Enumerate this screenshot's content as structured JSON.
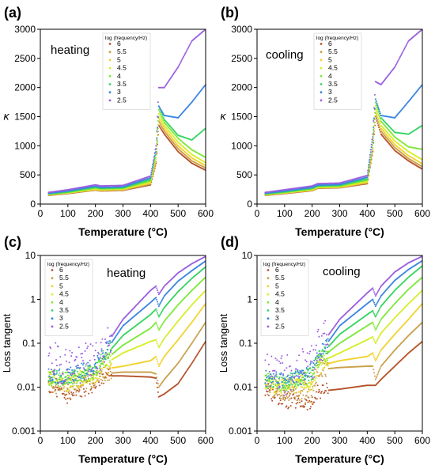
{
  "legend_title": "log (frequency/Hz)",
  "series_colors": [
    "#b5532a",
    "#c9a04a",
    "#f2d22e",
    "#d6ee2a",
    "#7fe83a",
    "#37d462",
    "#3b86e0",
    "#9b5fe0"
  ],
  "chart_data": [
    {
      "type": "scatter",
      "panel_label": "(a)",
      "annotation": "heating",
      "xlabel": "Temperature (°C)",
      "ylabel": "κ",
      "xlim": [
        0,
        600
      ],
      "ylim": [
        0,
        3000
      ],
      "yscale": "linear",
      "xticks": [
        0,
        100,
        200,
        300,
        400,
        500,
        600
      ],
      "yticks": [
        0,
        500,
        1000,
        1500,
        2000,
        2500,
        3000
      ],
      "ytick_labels": [
        "0",
        "500",
        "1000",
        "1500",
        "2000",
        "2500",
        "3000"
      ],
      "legend_position": "top-center",
      "x": [
        30,
        100,
        200,
        220,
        300,
        400,
        420,
        430,
        450,
        500,
        550,
        600
      ],
      "series": [
        {
          "name": "6",
          "values": [
            150,
            180,
            240,
            225,
            235,
            330,
            700,
            1350,
            1200,
            900,
            700,
            580
          ]
        },
        {
          "name": "5.5",
          "values": [
            155,
            185,
            245,
            230,
            240,
            345,
            720,
            1420,
            1250,
            950,
            740,
            620
          ]
        },
        {
          "name": "5",
          "values": [
            160,
            190,
            250,
            240,
            250,
            360,
            760,
            1480,
            1300,
            1000,
            790,
            660
          ]
        },
        {
          "name": "4.5",
          "values": [
            165,
            195,
            260,
            250,
            260,
            380,
            800,
            1550,
            1350,
            1060,
            850,
            710
          ]
        },
        {
          "name": "4",
          "values": [
            170,
            200,
            275,
            260,
            270,
            400,
            850,
            1620,
            1400,
            1130,
            930,
            800
          ]
        },
        {
          "name": "3.5",
          "values": [
            175,
            210,
            290,
            270,
            280,
            420,
            900,
            1680,
            1450,
            1180,
            1100,
            1300
          ]
        },
        {
          "name": "3",
          "values": [
            185,
            225,
            305,
            285,
            295,
            450,
            950,
            1680,
            1520,
            1480,
            1750,
            2050
          ]
        },
        {
          "name": "2.5",
          "values": [
            200,
            245,
            330,
            310,
            320,
            480,
            1000,
            2000,
            2000,
            2350,
            2800,
            3000
          ]
        }
      ]
    },
    {
      "type": "scatter",
      "panel_label": "(b)",
      "annotation": "cooling",
      "xlabel": "Temperature (°C)",
      "ylabel": "κ",
      "xlim": [
        0,
        600
      ],
      "ylim": [
        0,
        3000
      ],
      "yscale": "linear",
      "xticks": [
        0,
        100,
        200,
        300,
        400,
        500,
        600
      ],
      "yticks": [
        0,
        500,
        1000,
        1500,
        2000,
        2500,
        3000
      ],
      "ytick_labels": [
        "0",
        "500",
        "1000",
        "1500",
        "2000",
        "2500",
        "3000"
      ],
      "legend_position": "top-center",
      "x": [
        30,
        100,
        200,
        220,
        300,
        400,
        420,
        430,
        450,
        500,
        550,
        600
      ],
      "series": [
        {
          "name": "6",
          "values": [
            150,
            180,
            230,
            270,
            280,
            350,
            900,
            1500,
            1200,
            920,
            740,
            600
          ]
        },
        {
          "name": "5.5",
          "values": [
            155,
            185,
            235,
            275,
            285,
            360,
            930,
            1560,
            1250,
            970,
            780,
            640
          ]
        },
        {
          "name": "5",
          "values": [
            160,
            190,
            240,
            280,
            290,
            375,
            960,
            1620,
            1300,
            1020,
            830,
            690
          ]
        },
        {
          "name": "4.5",
          "values": [
            165,
            195,
            250,
            290,
            300,
            390,
            1000,
            1680,
            1350,
            1080,
            900,
            760
          ]
        },
        {
          "name": "4",
          "values": [
            170,
            200,
            260,
            300,
            310,
            410,
            1050,
            1740,
            1420,
            1150,
            980,
            940
          ]
        },
        {
          "name": "3.5",
          "values": [
            175,
            210,
            270,
            310,
            320,
            430,
            1100,
            1800,
            1480,
            1230,
            1200,
            1350
          ]
        },
        {
          "name": "3",
          "values": [
            185,
            225,
            285,
            325,
            335,
            460,
            1150,
            1800,
            1520,
            1480,
            1760,
            2050
          ]
        },
        {
          "name": "2.5",
          "values": [
            200,
            245,
            310,
            350,
            360,
            490,
            1200,
            2100,
            2050,
            2350,
            2800,
            3000
          ]
        }
      ]
    },
    {
      "type": "scatter",
      "panel_label": "(c)",
      "annotation": "heating",
      "xlabel": "Temperature (°C)",
      "ylabel": "Loss tangent",
      "xlim": [
        0,
        600
      ],
      "ylim": [
        0.001,
        10
      ],
      "yscale": "log",
      "xticks": [
        0,
        100,
        200,
        300,
        400,
        500,
        600
      ],
      "yticks": [
        0.001,
        0.01,
        0.1,
        1,
        10
      ],
      "ytick_labels": [
        "0.001",
        "0.01",
        "0.1",
        "1",
        "10"
      ],
      "legend_position": "top-left",
      "x": [
        30,
        100,
        200,
        220,
        300,
        400,
        420,
        430,
        450,
        500,
        550,
        600
      ],
      "series": [
        {
          "name": "6",
          "values": [
            0.01,
            0.006,
            0.012,
            0.018,
            0.018,
            0.017,
            0.016,
            0.006,
            0.007,
            0.012,
            0.035,
            0.11
          ]
        },
        {
          "name": "5.5",
          "values": [
            0.012,
            0.009,
            0.015,
            0.02,
            0.022,
            0.022,
            0.02,
            0.01,
            0.015,
            0.035,
            0.1,
            0.3
          ]
        },
        {
          "name": "5",
          "values": [
            0.015,
            0.012,
            0.018,
            0.025,
            0.03,
            0.04,
            0.05,
            0.03,
            0.05,
            0.12,
            0.3,
            0.8
          ]
        },
        {
          "name": "4.5",
          "values": [
            0.016,
            0.014,
            0.02,
            0.03,
            0.06,
            0.11,
            0.12,
            0.08,
            0.13,
            0.32,
            0.75,
            1.6
          ]
        },
        {
          "name": "4",
          "values": [
            0.016,
            0.015,
            0.022,
            0.035,
            0.09,
            0.22,
            0.3,
            0.2,
            0.32,
            0.75,
            1.6,
            3.2
          ]
        },
        {
          "name": "3.5",
          "values": [
            0.017,
            0.016,
            0.025,
            0.04,
            0.15,
            0.45,
            0.6,
            0.4,
            0.65,
            1.5,
            3.0,
            5.5
          ]
        },
        {
          "name": "3",
          "values": [
            0.018,
            0.018,
            0.03,
            0.045,
            0.25,
            0.85,
            1.1,
            0.7,
            1.2,
            2.6,
            4.5,
            7.5
          ]
        },
        {
          "name": "2.5",
          "values": [
            0.04,
            0.03,
            0.04,
            0.06,
            0.35,
            1.6,
            2.0,
            1.3,
            2.0,
            4.0,
            6.5,
            9.5
          ]
        }
      ]
    },
    {
      "type": "scatter",
      "panel_label": "(d)",
      "annotation": "cooling",
      "xlabel": "Temperature (°C)",
      "ylabel": "Loss tangent",
      "xlim": [
        0,
        600
      ],
      "ylim": [
        0.001,
        10
      ],
      "yscale": "log",
      "xticks": [
        0,
        100,
        200,
        300,
        400,
        500,
        600
      ],
      "yticks": [
        0.001,
        0.01,
        0.1,
        1,
        10
      ],
      "ytick_labels": [
        "0.001",
        "0.01",
        "0.1",
        "1",
        "10"
      ],
      "legend_position": "top-left",
      "x": [
        30,
        100,
        200,
        220,
        300,
        400,
        420,
        430,
        450,
        500,
        550,
        600
      ],
      "series": [
        {
          "name": "6",
          "values": [
            0.009,
            0.005,
            0.004,
            0.008,
            0.009,
            0.011,
            0.011,
            0.011,
            0.015,
            0.03,
            0.06,
            0.11
          ]
        },
        {
          "name": "5.5",
          "values": [
            0.01,
            0.007,
            0.006,
            0.025,
            0.028,
            0.03,
            0.03,
            0.015,
            0.03,
            0.07,
            0.15,
            0.3
          ]
        },
        {
          "name": "5",
          "values": [
            0.012,
            0.01,
            0.012,
            0.03,
            0.04,
            0.05,
            0.06,
            0.04,
            0.07,
            0.16,
            0.35,
            0.8
          ]
        },
        {
          "name": "4.5",
          "values": [
            0.013,
            0.011,
            0.015,
            0.035,
            0.06,
            0.12,
            0.14,
            0.1,
            0.17,
            0.38,
            0.8,
            1.6
          ]
        },
        {
          "name": "4",
          "values": [
            0.014,
            0.012,
            0.018,
            0.04,
            0.1,
            0.25,
            0.3,
            0.2,
            0.35,
            0.8,
            1.7,
            3.2
          ]
        },
        {
          "name": "3.5",
          "values": [
            0.015,
            0.013,
            0.02,
            0.045,
            0.16,
            0.45,
            0.55,
            0.4,
            0.7,
            1.6,
            3.2,
            5.8
          ]
        },
        {
          "name": "3",
          "values": [
            0.016,
            0.014,
            0.025,
            0.05,
            0.25,
            0.8,
            1.0,
            0.7,
            1.2,
            2.7,
            4.8,
            7.6
          ]
        },
        {
          "name": "2.5",
          "values": [
            0.02,
            0.018,
            0.035,
            0.07,
            0.35,
            1.4,
            1.8,
            1.2,
            2.0,
            4.2,
            6.8,
            9.6
          ]
        }
      ]
    }
  ]
}
